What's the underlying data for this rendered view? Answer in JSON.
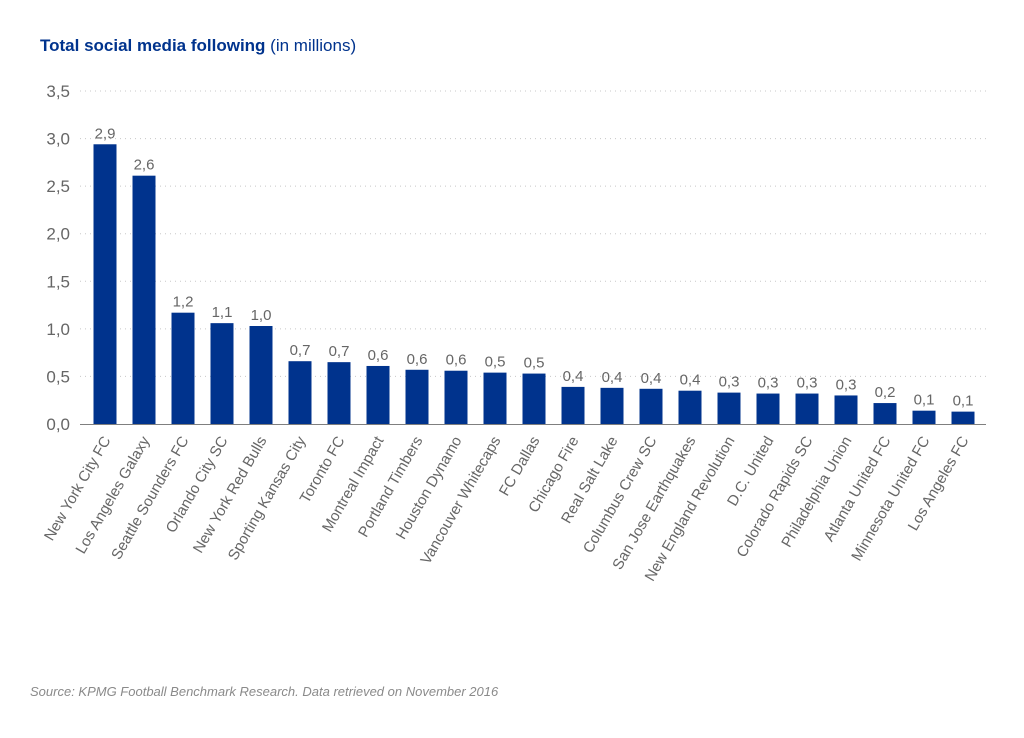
{
  "chart_data": {
    "type": "bar",
    "title": "Total social media following",
    "subtitle": "(in millions)",
    "categories": [
      "New York City FC",
      "Los Angeles Galaxy",
      "Seattle Sounders FC",
      "Orlando City SC",
      "New York Red Bulls",
      "Sporting Kansas City",
      "Toronto FC",
      "Montreal Impact",
      "Portland Timbers",
      "Houston Dynamo",
      "Vancouver Whitecaps",
      "FC Dallas",
      "Chicago Fire",
      "Real Salt Lake",
      "Columbus Crew SC",
      "San Jose Earthquakes",
      "New England Revolution",
      "D.C. United",
      "Colorado Rapids SC",
      "Philadelphia Union",
      "Atlanta United FC",
      "Minnesota United FC",
      "Los Angeles FC"
    ],
    "values": [
      2.94,
      2.61,
      1.17,
      1.06,
      1.03,
      0.66,
      0.65,
      0.61,
      0.57,
      0.56,
      0.54,
      0.53,
      0.39,
      0.38,
      0.37,
      0.35,
      0.33,
      0.32,
      0.32,
      0.3,
      0.22,
      0.14,
      0.13
    ],
    "data_labels": [
      "2,9",
      "2,6",
      "1,2",
      "1,1",
      "1,0",
      "0,7",
      "0,7",
      "0,6",
      "0,6",
      "0,6",
      "0,5",
      "0,5",
      "0,4",
      "0,4",
      "0,4",
      "0,4",
      "0,3",
      "0,3",
      "0,3",
      "0,3",
      "0,2",
      "0,1",
      "0,1"
    ],
    "y_ticks": [
      "0,0",
      "0,5",
      "1,0",
      "1,5",
      "2,0",
      "2,5",
      "3,0",
      "3,5"
    ],
    "ylim": [
      0,
      3.5
    ],
    "grid": "horizontal dotted",
    "bar_color": "#00338d"
  },
  "source": "Source: KPMG Football Benchmark Research. Data retrieved on November 2016"
}
